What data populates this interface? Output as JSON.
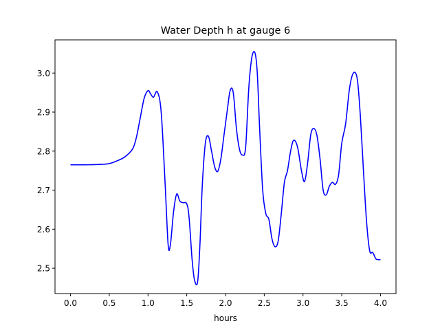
{
  "chart_data": {
    "type": "line",
    "title": "Water Depth h at gauge 6",
    "xlabel": "hours",
    "ylabel": "",
    "xlim": [
      -0.2,
      4.2
    ],
    "ylim": [
      2.435,
      3.085
    ],
    "xticks": [
      0.0,
      0.5,
      1.0,
      1.5,
      2.0,
      2.5,
      3.0,
      3.5,
      4.0
    ],
    "xtick_labels": [
      "0.0",
      "0.5",
      "1.0",
      "1.5",
      "2.0",
      "2.5",
      "3.0",
      "3.5",
      "4.0"
    ],
    "yticks": [
      2.5,
      2.6,
      2.7,
      2.8,
      2.9,
      3.0
    ],
    "ytick_labels": [
      "2.5",
      "2.6",
      "2.7",
      "2.8",
      "2.9",
      "3.0"
    ],
    "grid": false,
    "series": [
      {
        "color": "#0000ff",
        "x": [
          0.0,
          0.2,
          0.4,
          0.5,
          0.6,
          0.7,
          0.8,
          0.85,
          0.9,
          0.95,
          1.0,
          1.03,
          1.07,
          1.12,
          1.17,
          1.22,
          1.26,
          1.29,
          1.33,
          1.37,
          1.41,
          1.45,
          1.5,
          1.53,
          1.57,
          1.6,
          1.64,
          1.67,
          1.7,
          1.74,
          1.78,
          1.82,
          1.86,
          1.9,
          1.94,
          1.98,
          2.02,
          2.06,
          2.1,
          2.14,
          2.18,
          2.22,
          2.26,
          2.3,
          2.34,
          2.38,
          2.41,
          2.44,
          2.48,
          2.52,
          2.56,
          2.6,
          2.64,
          2.68,
          2.72,
          2.76,
          2.8,
          2.84,
          2.88,
          2.93,
          2.98,
          3.02,
          3.06,
          3.1,
          3.14,
          3.18,
          3.22,
          3.26,
          3.3,
          3.34,
          3.38,
          3.42,
          3.46,
          3.5,
          3.55,
          3.6,
          3.65,
          3.7,
          3.74,
          3.78,
          3.82,
          3.86,
          3.9,
          3.94,
          3.97,
          4.0
        ],
        "y": [
          2.765,
          2.765,
          2.766,
          2.768,
          2.775,
          2.785,
          2.805,
          2.835,
          2.885,
          2.935,
          2.955,
          2.948,
          2.938,
          2.952,
          2.9,
          2.72,
          2.56,
          2.562,
          2.645,
          2.69,
          2.672,
          2.668,
          2.665,
          2.63,
          2.52,
          2.47,
          2.465,
          2.56,
          2.71,
          2.82,
          2.838,
          2.8,
          2.76,
          2.748,
          2.78,
          2.84,
          2.9,
          2.955,
          2.95,
          2.86,
          2.805,
          2.79,
          2.81,
          2.96,
          3.04,
          3.052,
          3.0,
          2.86,
          2.7,
          2.64,
          2.625,
          2.575,
          2.555,
          2.57,
          2.64,
          2.72,
          2.75,
          2.8,
          2.828,
          2.81,
          2.75,
          2.722,
          2.77,
          2.842,
          2.858,
          2.84,
          2.78,
          2.7,
          2.688,
          2.71,
          2.72,
          2.715,
          2.74,
          2.82,
          2.87,
          2.96,
          3.0,
          2.985,
          2.89,
          2.75,
          2.62,
          2.545,
          2.54,
          2.524,
          2.522,
          2.522
        ]
      }
    ]
  }
}
